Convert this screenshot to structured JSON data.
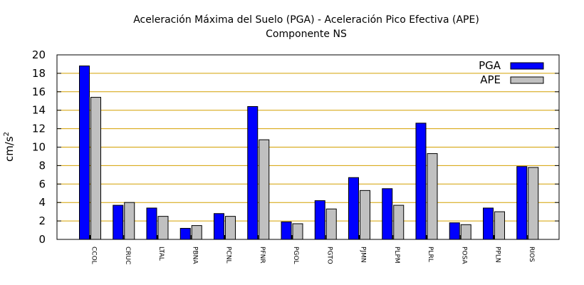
{
  "chart_data": {
    "type": "bar",
    "title": "Aceleración Máxima del Suelo (PGA) -  Aceleración Pico Efectiva (APE)",
    "subtitle": "Componente NS",
    "ylabel_base": "cm/s",
    "ylabel_exp": "2",
    "ylim": [
      0,
      20
    ],
    "ytick_step": 2,
    "grid": "horizontal",
    "legend_position": "top-right",
    "categories": [
      "CCOL",
      "CRUC",
      "LTAL",
      "PBNA",
      "PCNL",
      "PFNR",
      "PGOL",
      "PGTO",
      "PJMN",
      "PLPM",
      "PLRL",
      "POSA",
      "PPLN",
      "RIOS"
    ],
    "series": [
      {
        "name": "PGA",
        "color": "#0000ff",
        "values": [
          18.8,
          3.7,
          3.4,
          1.2,
          2.8,
          14.4,
          1.9,
          4.2,
          6.7,
          5.5,
          12.6,
          1.8,
          3.4,
          7.9
        ]
      },
      {
        "name": "APE",
        "color": "#c0c0c0",
        "values": [
          15.4,
          4.0,
          2.5,
          1.5,
          2.5,
          10.8,
          1.7,
          3.3,
          5.3,
          3.7,
          9.3,
          1.6,
          3.0,
          7.8
        ]
      }
    ],
    "grid_color": "#d4a000"
  }
}
